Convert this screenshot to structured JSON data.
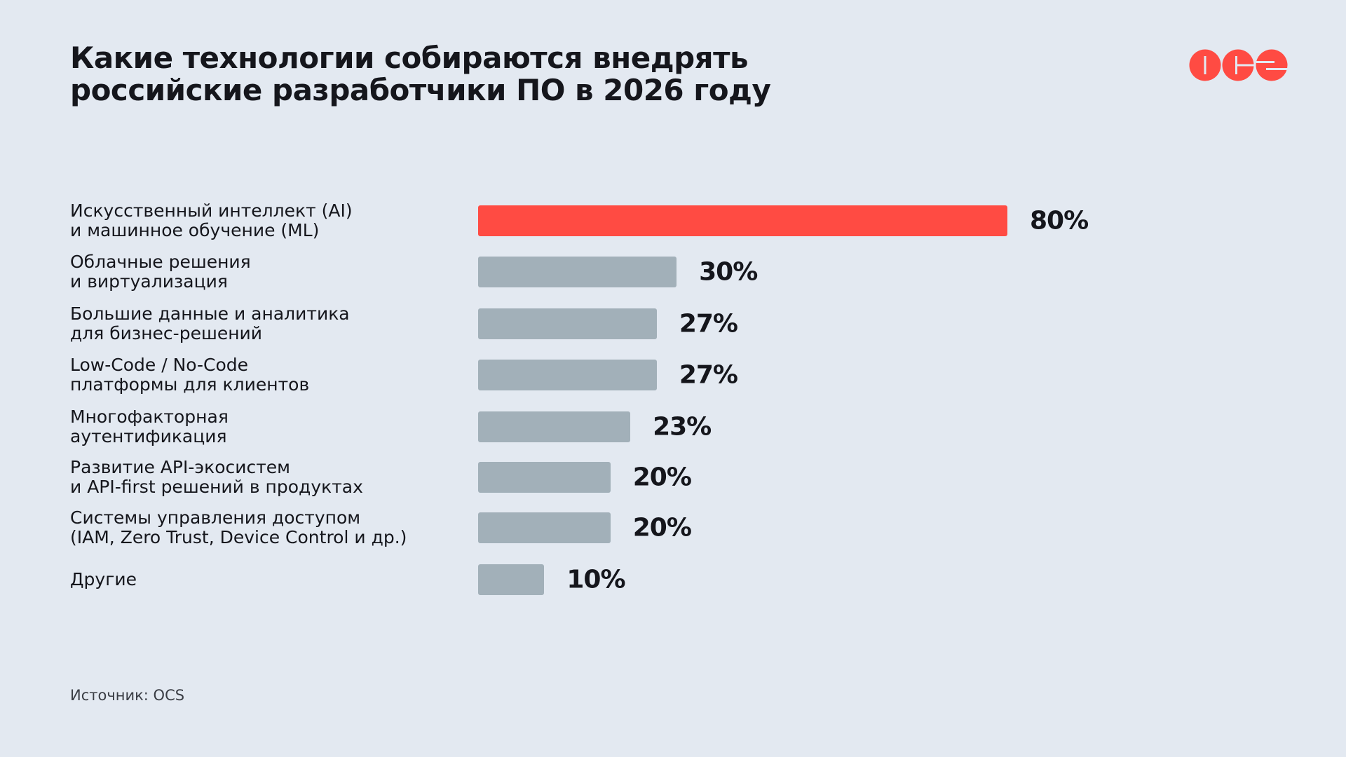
{
  "chart_data": {
    "type": "bar",
    "orientation": "horizontal",
    "title": [
      "Какие технологии собираются внедрять",
      "российские разработчики ПО в 2026 году"
    ],
    "categories": [
      [
        "Искусственный интеллект (AI)",
        "и машинное обучение (ML)"
      ],
      [
        "Облачные решения",
        "и виртуализация"
      ],
      [
        "Большие данные и аналитика",
        "для бизнес-решений"
      ],
      [
        "Low-Code / No-Code",
        "платформы для клиентов"
      ],
      [
        "Многофакторная",
        "аутентификация"
      ],
      [
        "Развитие API-экосистем",
        "и API-first решений в продуктах"
      ],
      [
        "Системы управления доступом",
        "(IAM, Zero Trust, Device Control и др.)"
      ],
      [
        "Другие"
      ]
    ],
    "values": [
      80,
      30,
      27,
      27,
      23,
      20,
      20,
      10
    ],
    "value_labels": [
      "80%",
      "30%",
      "27%",
      "27%",
      "23%",
      "20%",
      "20%",
      "10%"
    ],
    "unit": "%",
    "xlim": [
      0,
      80
    ],
    "grid": false,
    "highlight_color": "#ff4b43",
    "bar_color": "#a2b0b9",
    "highlight_index": 0
  },
  "source": "Источник: OCS",
  "logo": {
    "text": "OCS",
    "color": "#ff4b43"
  }
}
